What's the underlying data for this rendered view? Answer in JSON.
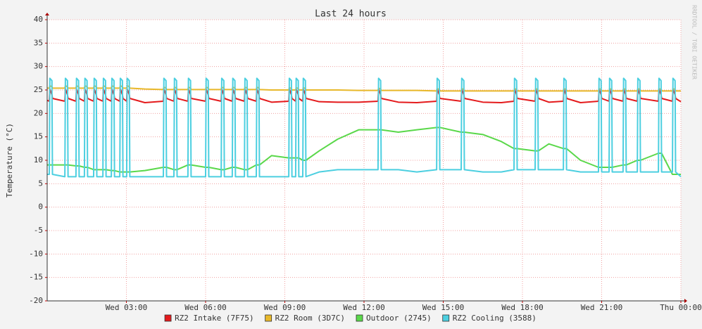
{
  "chart_data": {
    "type": "line",
    "title": "Last 24 hours",
    "y_label": "Temperature (°C)",
    "watermark": "RRDTOOL / TOBI OETIKER",
    "xlim": [
      0,
      24
    ],
    "xticks": [
      {
        "value": 3,
        "label": "Wed 03:00"
      },
      {
        "value": 6,
        "label": "Wed 06:00"
      },
      {
        "value": 9,
        "label": "Wed 09:00"
      },
      {
        "value": 12,
        "label": "Wed 12:00"
      },
      {
        "value": 15,
        "label": "Wed 15:00"
      },
      {
        "value": 18,
        "label": "Wed 18:00"
      },
      {
        "value": 21,
        "label": "Wed 21:00"
      },
      {
        "value": 24,
        "label": "Thu 00:00"
      }
    ],
    "ylim": [
      -20,
      40
    ],
    "yticks": [
      -20,
      -15,
      -10,
      -5,
      0,
      5,
      10,
      15,
      20,
      25,
      30,
      35,
      40
    ],
    "grid": true,
    "x": [
      0,
      0.08,
      0.1,
      0.18,
      0.2,
      0.67,
      0.69,
      0.77,
      0.79,
      1.09,
      1.11,
      1.19,
      1.21,
      1.41,
      1.43,
      1.51,
      1.53,
      1.76,
      1.78,
      1.86,
      1.88,
      2.11,
      2.13,
      2.21,
      2.23,
      2.43,
      2.45,
      2.53,
      2.55,
      2.75,
      2.77,
      2.85,
      2.87,
      3.01,
      3.03,
      3.11,
      3.13,
      3.7,
      4.4,
      4.42,
      4.5,
      4.52,
      4.8,
      4.82,
      4.9,
      4.92,
      5.33,
      5.35,
      5.43,
      5.45,
      6,
      6.02,
      6.1,
      6.12,
      6.59,
      6.61,
      6.69,
      6.71,
      7.01,
      7.03,
      7.11,
      7.13,
      7.47,
      7.49,
      7.57,
      7.59,
      7.92,
      7.94,
      8.02,
      8.04,
      8.5,
      9.15,
      9.17,
      9.25,
      9.27,
      9.41,
      9.43,
      9.51,
      9.53,
      9.68,
      9.7,
      9.78,
      9.8,
      10.3,
      11,
      11.8,
      12.53,
      12.55,
      12.63,
      12.65,
      13.3,
      14,
      14.75,
      14.77,
      14.85,
      14.87,
      15.68,
      15.7,
      15.78,
      15.8,
      16.5,
      17.2,
      17.68,
      17.7,
      17.78,
      17.8,
      18.48,
      18.5,
      18.58,
      18.6,
      19,
      19.55,
      19.57,
      19.65,
      19.67,
      20.2,
      20.88,
      20.9,
      20.98,
      21,
      21.28,
      21.3,
      21.38,
      21.4,
      21.81,
      21.83,
      21.91,
      21.93,
      22.35,
      22.37,
      22.45,
      22.47,
      23.15,
      23.17,
      23.25,
      23.27,
      23.68,
      23.7,
      23.78,
      23.8,
      24
    ],
    "series": [
      {
        "name": "RZ2 Intake (7F75)",
        "color": "#e41a1c",
        "values": [
          22.8,
          22.6,
          25.2,
          24,
          23.2,
          22.6,
          25.2,
          24,
          23.2,
          22.6,
          25.2,
          24,
          23.2,
          22.6,
          25.2,
          24,
          23.2,
          22.6,
          25.2,
          24,
          23.2,
          22.6,
          25.2,
          24,
          23.2,
          22.6,
          25.2,
          24,
          23.2,
          22.6,
          25.2,
          24,
          23.2,
          22.6,
          25.2,
          24,
          23.2,
          22.3,
          22.6,
          25.2,
          24,
          23.2,
          22.6,
          25.2,
          24,
          23.2,
          22.6,
          25.2,
          24,
          23.2,
          22.6,
          25.2,
          24,
          23.2,
          22.6,
          25.2,
          24,
          23.2,
          22.6,
          25.2,
          24,
          23.2,
          22.6,
          25.2,
          24,
          23.2,
          22.6,
          25.2,
          24,
          23.2,
          22.4,
          22.6,
          25.2,
          24,
          23.2,
          22.6,
          25.2,
          24,
          23.2,
          22.6,
          25.2,
          24,
          23.2,
          22.5,
          22.4,
          22.4,
          22.6,
          25.2,
          24,
          23.2,
          22.4,
          22.3,
          22.6,
          25.2,
          24,
          23.2,
          22.6,
          25.2,
          24,
          23.2,
          22.4,
          22.3,
          22.6,
          25.2,
          24,
          23.2,
          22.6,
          25.2,
          24,
          23.2,
          22.4,
          22.6,
          25.2,
          24,
          23.2,
          22.3,
          22.6,
          25.2,
          24,
          23.2,
          22.6,
          25.2,
          24,
          23.2,
          22.6,
          25.2,
          24,
          23.2,
          22.6,
          25.2,
          24,
          23.2,
          22.6,
          25.2,
          24,
          23.2,
          22.6,
          25.2,
          24,
          23.2,
          22.5
        ]
      },
      {
        "name": "RZ2 Room (3D7C)",
        "color": "#e8b82a",
        "values": [
          25.4,
          25.4,
          25.9,
          25.7,
          25.4,
          25.4,
          25.9,
          25.7,
          25.4,
          25.4,
          25.9,
          25.7,
          25.4,
          25.4,
          25.9,
          25.7,
          25.4,
          25.4,
          25.9,
          25.7,
          25.4,
          25.4,
          25.9,
          25.7,
          25.4,
          25.4,
          25.9,
          25.7,
          25.4,
          25.4,
          25.9,
          25.7,
          25.4,
          25.4,
          25.9,
          25.7,
          25.4,
          25.2,
          25.1,
          25.6,
          25.4,
          25.1,
          25.1,
          25.6,
          25.4,
          25.1,
          25.1,
          25.6,
          25.4,
          25.1,
          25.1,
          25.6,
          25.4,
          25.1,
          25.1,
          25.6,
          25.4,
          25.1,
          25.1,
          25.6,
          25.4,
          25.1,
          25.1,
          25.6,
          25.4,
          25.1,
          25.1,
          25.6,
          25.4,
          25.1,
          25,
          25,
          25.5,
          25.3,
          25,
          25,
          25.5,
          25.3,
          25,
          25,
          25.5,
          25.3,
          25,
          25,
          25,
          24.9,
          24.9,
          25.4,
          25.2,
          24.9,
          24.9,
          24.9,
          24.8,
          25.3,
          25.1,
          24.8,
          24.8,
          25.3,
          25.1,
          24.8,
          24.8,
          24.8,
          24.8,
          25.3,
          25.1,
          24.8,
          24.8,
          25.3,
          25.1,
          24.8,
          24.8,
          24.8,
          25.3,
          25.1,
          24.8,
          24.8,
          24.8,
          25.3,
          25.1,
          24.8,
          24.8,
          25.3,
          25.1,
          24.8,
          24.8,
          25.3,
          25.1,
          24.8,
          24.8,
          25.3,
          25.1,
          24.8,
          24.8,
          25.3,
          25.1,
          24.8,
          24.8,
          25.3,
          25.1,
          24.8,
          24.8
        ]
      },
      {
        "name": "Outdoor (2745)",
        "color": "#5ad84a",
        "values": [
          9,
          9,
          9,
          9,
          9,
          9,
          9,
          9,
          9,
          8.8,
          8.8,
          8.8,
          8.8,
          8.5,
          8.5,
          8.5,
          8.5,
          8,
          8,
          8,
          8,
          8,
          8,
          8,
          8,
          7.8,
          7.8,
          7.8,
          7.8,
          7.5,
          7.5,
          7.5,
          7.5,
          7.5,
          7.5,
          7.5,
          7.5,
          7.8,
          8.5,
          8.5,
          8.5,
          8.5,
          8,
          8,
          8,
          8,
          9,
          9,
          9,
          9,
          8.5,
          8.5,
          8.5,
          8.5,
          8,
          8,
          8,
          8,
          8.5,
          8.5,
          8.5,
          8.5,
          8,
          8,
          8,
          8,
          9,
          9,
          9,
          9,
          11,
          10.5,
          10.5,
          10.5,
          10.5,
          10.5,
          10.5,
          10.5,
          10.5,
          10,
          10,
          10,
          10,
          12,
          14.5,
          16.5,
          16.5,
          16.5,
          16.5,
          16.5,
          16,
          16.5,
          17,
          17,
          17,
          17,
          16,
          16,
          16,
          16,
          15.5,
          14,
          12.5,
          12.5,
          12.5,
          12.5,
          12,
          12,
          12,
          12,
          13.5,
          12.5,
          12.5,
          12.5,
          12.5,
          10,
          8.5,
          8.5,
          8.5,
          8.5,
          8.5,
          8.5,
          8.5,
          8.5,
          9,
          9,
          9,
          9,
          10,
          10,
          10,
          10,
          11.5,
          11.5,
          11.5,
          11.5,
          7,
          7,
          7,
          7,
          7
        ]
      },
      {
        "name": "RZ2 Cooling (3588)",
        "color": "#4ccfe0",
        "values": [
          7,
          7,
          27.5,
          27,
          7,
          6.5,
          27.5,
          27,
          6.5,
          6.5,
          27.5,
          27,
          6.5,
          6.5,
          27.5,
          27,
          6.5,
          6.5,
          27.5,
          27,
          6.5,
          6.5,
          27.5,
          27,
          6.5,
          6.5,
          27.5,
          27,
          6.5,
          6.5,
          27.5,
          27,
          6.5,
          6.5,
          27.5,
          27,
          6.5,
          6.5,
          6.5,
          27.5,
          27,
          6.5,
          6.5,
          27.5,
          27,
          6.5,
          6.5,
          27.5,
          27,
          6.5,
          6.5,
          27.5,
          27,
          6.5,
          6.5,
          27.5,
          27,
          6.5,
          6.5,
          27.5,
          27,
          6.5,
          6.5,
          27.5,
          27,
          6.5,
          6.5,
          27.5,
          27,
          6.5,
          6.5,
          6.5,
          27.5,
          27,
          6.5,
          6.5,
          27.5,
          27,
          6.5,
          6.5,
          27.5,
          27,
          6.5,
          7.5,
          8,
          8,
          8,
          27.5,
          27,
          8,
          8,
          7.5,
          8,
          27.5,
          27,
          8,
          8,
          27.5,
          27,
          8,
          7.5,
          7.5,
          8,
          27.5,
          27,
          8,
          8,
          27.5,
          27,
          8,
          8,
          8,
          27.5,
          27,
          8,
          7.5,
          7.5,
          27.5,
          27,
          7.5,
          7.5,
          27.5,
          27,
          7.5,
          7.5,
          27.5,
          27,
          7.5,
          7.5,
          27.5,
          27,
          7.5,
          7.5,
          27.5,
          27,
          7.5,
          7.5,
          27.5,
          27,
          7.5,
          6.5
        ]
      }
    ]
  }
}
